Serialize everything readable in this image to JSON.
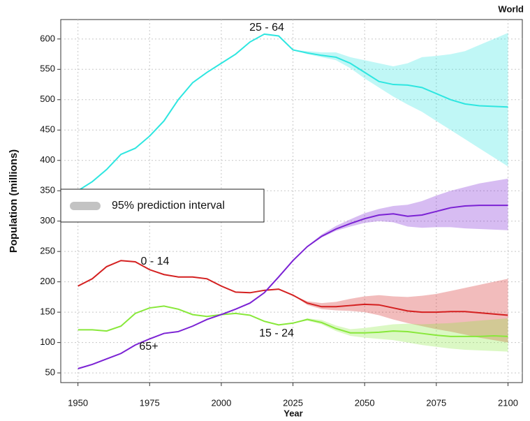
{
  "chart_data": {
    "type": "line",
    "title": "World",
    "x_label": "Year",
    "y_label": "Population (millions)",
    "legend": "95% prediction interval",
    "legend_position": "left",
    "x": [
      1950,
      1955,
      1960,
      1965,
      1970,
      1975,
      1980,
      1985,
      1990,
      1995,
      2000,
      2005,
      2010,
      2015,
      2020,
      2025,
      2030,
      2035,
      2040,
      2045,
      2050,
      2055,
      2060,
      2065,
      2070,
      2075,
      2080,
      2085,
      2090,
      2095,
      2100
    ],
    "xlim": [
      1944,
      2105
    ],
    "xticks": [
      1950,
      1975,
      2000,
      2025,
      2050,
      2075,
      2100
    ],
    "ylim": [
      34,
      632
    ],
    "yticks": [
      50,
      100,
      150,
      200,
      250,
      300,
      350,
      400,
      450,
      500,
      550,
      600
    ],
    "grid": true,
    "series": [
      {
        "name": "25 - 64",
        "color": "#2ee6e0",
        "values": [
          350,
          365,
          385,
          410,
          420,
          440,
          465,
          500,
          528,
          545,
          560,
          575,
          595,
          608,
          605,
          582,
          577,
          573,
          570,
          560,
          545,
          530,
          525,
          524,
          520,
          510,
          500,
          493,
          490,
          489,
          488
        ],
        "lower": [
          null,
          null,
          null,
          null,
          null,
          null,
          null,
          null,
          null,
          null,
          null,
          null,
          null,
          null,
          null,
          582,
          575,
          570,
          565,
          552,
          535,
          520,
          505,
          492,
          480,
          465,
          450,
          435,
          420,
          405,
          390
        ],
        "upper": [
          null,
          null,
          null,
          null,
          null,
          null,
          null,
          null,
          null,
          null,
          null,
          null,
          null,
          null,
          null,
          582,
          580,
          578,
          578,
          570,
          565,
          560,
          555,
          560,
          570,
          572,
          575,
          580,
          590,
          600,
          610
        ]
      },
      {
        "name": "0 - 14",
        "color": "#d42020",
        "values": [
          193,
          205,
          225,
          235,
          233,
          220,
          212,
          208,
          208,
          205,
          193,
          183,
          182,
          186,
          188,
          178,
          165,
          159,
          159,
          161,
          163,
          162,
          157,
          152,
          150,
          150,
          151,
          151,
          149,
          147,
          145
        ],
        "lower": [
          null,
          null,
          null,
          null,
          null,
          null,
          null,
          null,
          null,
          null,
          null,
          null,
          null,
          null,
          null,
          178,
          162,
          155,
          153,
          152,
          150,
          145,
          138,
          132,
          127,
          122,
          118,
          113,
          108,
          104,
          100
        ],
        "upper": [
          null,
          null,
          null,
          null,
          null,
          null,
          null,
          null,
          null,
          null,
          null,
          null,
          null,
          null,
          null,
          178,
          168,
          165,
          167,
          172,
          176,
          178,
          176,
          175,
          177,
          180,
          185,
          190,
          195,
          200,
          205
        ]
      },
      {
        "name": "15 - 24",
        "color": "#88e83a",
        "values": [
          121,
          121,
          119,
          127,
          148,
          157,
          160,
          155,
          146,
          143,
          146,
          148,
          145,
          135,
          129,
          132,
          138,
          133,
          123,
          116,
          116,
          117,
          119,
          118,
          115,
          112,
          110,
          110,
          110,
          111,
          110
        ],
        "lower": [
          null,
          null,
          null,
          null,
          null,
          null,
          null,
          null,
          null,
          null,
          null,
          null,
          null,
          null,
          null,
          132,
          136,
          130,
          119,
          111,
          108,
          106,
          104,
          100,
          96,
          93,
          90,
          88,
          87,
          86,
          85
        ],
        "upper": [
          null,
          null,
          null,
          null,
          null,
          null,
          null,
          null,
          null,
          null,
          null,
          null,
          null,
          null,
          null,
          132,
          140,
          137,
          128,
          122,
          124,
          127,
          130,
          131,
          130,
          131,
          132,
          134,
          136,
          138,
          140
        ]
      },
      {
        "name": "65+",
        "color": "#7b22d4",
        "values": [
          57,
          64,
          73,
          82,
          96,
          106,
          115,
          118,
          127,
          138,
          146,
          155,
          165,
          182,
          208,
          235,
          258,
          275,
          287,
          296,
          304,
          310,
          312,
          308,
          310,
          316,
          322,
          325,
          326,
          326,
          326
        ],
        "lower": [
          null,
          null,
          null,
          null,
          null,
          null,
          null,
          null,
          null,
          null,
          null,
          null,
          null,
          null,
          null,
          235,
          257,
          273,
          284,
          291,
          297,
          300,
          298,
          291,
          289,
          290,
          290,
          288,
          287,
          286,
          285
        ],
        "upper": [
          null,
          null,
          null,
          null,
          null,
          null,
          null,
          null,
          null,
          null,
          null,
          null,
          null,
          null,
          null,
          235,
          259,
          278,
          292,
          303,
          313,
          320,
          325,
          327,
          333,
          342,
          350,
          356,
          362,
          366,
          370
        ]
      }
    ]
  }
}
